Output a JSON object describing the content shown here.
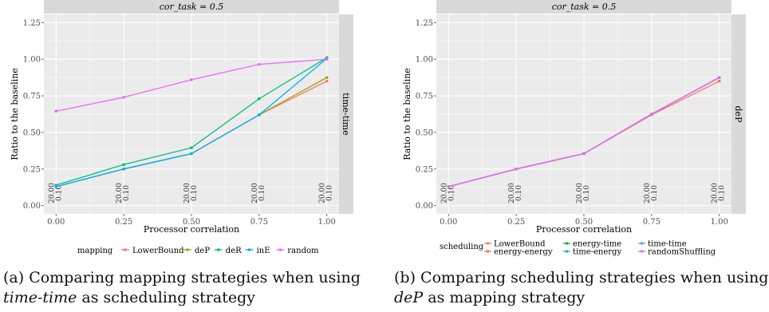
{
  "colors": {
    "LowerBound": "#F8766D",
    "deP": "#A3A500",
    "deR": "#00BF7D",
    "inE": "#00B0F6",
    "random": "#E76BF3",
    "energy-energy": "#F8766D",
    "energy-time": "#00BA38",
    "time-energy": "#00BFC4",
    "time-time": "#619CFF",
    "randomShuffling": "#F564E3",
    "panel_bg": "#EBEBEB",
    "strip_bg": "#D9D9D9",
    "grid": "#FFFFFF"
  },
  "chart_data": [
    {
      "type": "line",
      "title": "cor_task = 0.5",
      "strip_right": "time-time",
      "xlabel": "Processor correlation",
      "ylabel": "Ratio to the baseline",
      "x": [
        0,
        0.25,
        0.5,
        0.75,
        1.0
      ],
      "x_ticks": [
        "0.00",
        "0.25",
        "0.50",
        "0.75",
        "1.00"
      ],
      "y_ticks": [
        "0.00",
        "0.25",
        "0.50",
        "0.75",
        "1.00",
        "1.25"
      ],
      "xlim": [
        0,
        1
      ],
      "ylim": [
        0,
        1.25
      ],
      "grid": true,
      "legend_title": "mapping",
      "legend_position": "bottom",
      "point_labels": [
        [
          "20.00",
          "0.10"
        ],
        [
          "20.00",
          "0.10"
        ],
        [
          "20.00",
          "0.10"
        ],
        [
          "20.00",
          "0.10"
        ],
        [
          "20.00",
          "0.10"
        ]
      ],
      "series": [
        {
          "name": "LowerBound",
          "values": [
            0.13,
            0.25,
            0.355,
            0.62,
            0.85
          ]
        },
        {
          "name": "deP",
          "values": [
            0.13,
            0.25,
            0.355,
            0.62,
            0.875
          ]
        },
        {
          "name": "deR",
          "values": [
            0.14,
            0.28,
            0.395,
            0.73,
            1.01
          ]
        },
        {
          "name": "inE",
          "values": [
            0.13,
            0.25,
            0.355,
            0.62,
            1.005
          ]
        },
        {
          "name": "random",
          "values": [
            0.645,
            0.74,
            0.86,
            0.965,
            1.0
          ]
        }
      ]
    },
    {
      "type": "line",
      "title": "cor_task = 0.5",
      "strip_right": "deP",
      "xlabel": "Processor correlation",
      "ylabel": "Ratio to the baseline",
      "x": [
        0,
        0.25,
        0.5,
        0.75,
        1.0
      ],
      "x_ticks": [
        "0.00",
        "0.25",
        "0.50",
        "0.75",
        "1.00"
      ],
      "y_ticks": [
        "0.00",
        "0.25",
        "0.50",
        "0.75",
        "1.00",
        "1.25"
      ],
      "xlim": [
        0,
        1
      ],
      "ylim": [
        0,
        1.25
      ],
      "grid": true,
      "legend_title": "scheduling",
      "legend_position": "bottom",
      "point_labels": [
        [
          "20.00",
          "0.10"
        ],
        [
          "20.00",
          "0.10"
        ],
        [
          "20.00",
          "0.10"
        ],
        [
          "20.00",
          "0.10"
        ],
        [
          "20.00",
          "0.10"
        ]
      ],
      "series": [
        {
          "name": "LowerBound",
          "values": [
            0.13,
            0.25,
            0.355,
            0.62,
            0.85
          ]
        },
        {
          "name": "energy-energy",
          "values": [
            0.13,
            0.25,
            0.355,
            0.625,
            0.875
          ]
        },
        {
          "name": "energy-time",
          "values": [
            0.13,
            0.25,
            0.355,
            0.625,
            0.875
          ]
        },
        {
          "name": "time-energy",
          "values": [
            0.13,
            0.25,
            0.355,
            0.625,
            0.875
          ]
        },
        {
          "name": "time-time",
          "values": [
            0.13,
            0.25,
            0.355,
            0.625,
            0.875
          ]
        },
        {
          "name": "randomShuffling",
          "values": [
            0.13,
            0.25,
            0.355,
            0.625,
            0.875
          ]
        }
      ]
    }
  ],
  "captions": {
    "a": {
      "pre": "(a) Comparing mapping strategies when using ",
      "em": "time-time",
      "post": " as scheduling strategy"
    },
    "b": {
      "pre": "(b) Comparing scheduling strategies when using ",
      "em": "deP",
      "post": " as mapping strategy"
    }
  }
}
